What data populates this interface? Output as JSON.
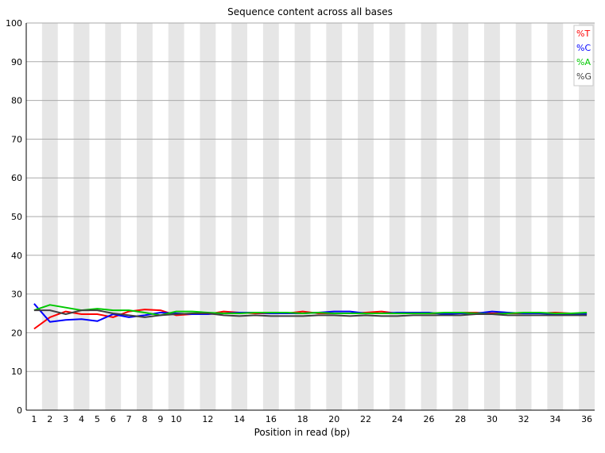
{
  "chart_data": {
    "type": "line",
    "title": "Sequence content across all bases",
    "xlabel": "Position in read (bp)",
    "ylabel": "",
    "ylim": [
      0,
      100
    ],
    "yticks": [
      0,
      10,
      20,
      30,
      40,
      50,
      60,
      70,
      80,
      90,
      100
    ],
    "categories": [
      "1",
      "2",
      "3",
      "4",
      "5",
      "6",
      "7",
      "8",
      "9",
      "10",
      "11",
      "12",
      "13",
      "14",
      "15",
      "16",
      "17",
      "18",
      "19",
      "20",
      "21",
      "22",
      "23",
      "24",
      "25",
      "26",
      "27",
      "28",
      "29",
      "30",
      "31",
      "32",
      "33",
      "34",
      "35",
      "36"
    ],
    "category_labels": [
      "1",
      "2",
      "3",
      "4",
      "5",
      "6",
      "7",
      "8",
      "9",
      "10",
      "",
      "12",
      "",
      "14",
      "",
      "16",
      "",
      "18",
      "",
      "20",
      "",
      "22",
      "",
      "24",
      "",
      "26",
      "",
      "28",
      "",
      "30",
      "",
      "32",
      "",
      "34",
      "",
      "36"
    ],
    "grid": true,
    "alternating_bands": true,
    "legend_position": "top-right",
    "series": [
      {
        "name": "%T",
        "color": "#ff0000",
        "values": [
          21.0,
          24.0,
          25.5,
          24.8,
          24.8,
          24.0,
          25.5,
          26.0,
          25.8,
          24.5,
          24.8,
          24.8,
          25.5,
          25.2,
          25.0,
          25.0,
          25.0,
          25.5,
          25.0,
          25.0,
          25.0,
          25.2,
          25.5,
          25.0,
          25.0,
          25.0,
          25.0,
          25.2,
          25.2,
          25.0,
          25.0,
          25.0,
          25.0,
          25.2,
          25.0,
          25.0
        ]
      },
      {
        "name": "%C",
        "color": "#0000ff",
        "values": [
          27.5,
          22.8,
          23.3,
          23.5,
          23.0,
          24.8,
          24.0,
          24.5,
          25.2,
          25.0,
          24.8,
          24.8,
          25.0,
          25.2,
          25.2,
          25.0,
          25.0,
          25.0,
          25.2,
          25.5,
          25.5,
          25.0,
          25.0,
          25.2,
          25.2,
          25.2,
          24.8,
          25.0,
          25.0,
          25.5,
          25.2,
          25.0,
          25.0,
          24.8,
          24.8,
          24.8
        ]
      },
      {
        "name": "%A",
        "color": "#00c800",
        "values": [
          25.8,
          27.2,
          26.5,
          25.8,
          26.2,
          25.8,
          25.8,
          25.2,
          24.5,
          25.5,
          25.5,
          25.2,
          25.0,
          25.0,
          25.2,
          25.2,
          25.2,
          25.0,
          25.2,
          25.0,
          25.0,
          25.0,
          25.0,
          25.0,
          25.0,
          25.0,
          25.2,
          25.2,
          25.0,
          24.8,
          25.0,
          25.2,
          25.2,
          25.0,
          25.0,
          25.2
        ]
      },
      {
        "name": "%G",
        "color": "#404040",
        "values": [
          25.8,
          25.8,
          24.8,
          25.8,
          25.8,
          25.0,
          24.5,
          24.0,
          24.5,
          24.8,
          25.0,
          25.0,
          24.5,
          24.3,
          24.5,
          24.3,
          24.3,
          24.3,
          24.5,
          24.5,
          24.3,
          24.5,
          24.3,
          24.3,
          24.5,
          24.5,
          24.5,
          24.5,
          24.8,
          24.8,
          24.5,
          24.5,
          24.5,
          24.5,
          24.5,
          24.5
        ]
      }
    ]
  }
}
